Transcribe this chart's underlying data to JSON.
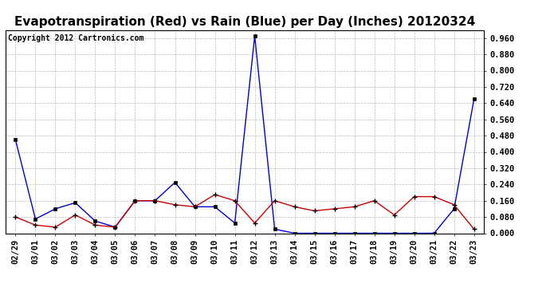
{
  "title": "Evapotranspiration (Red) vs Rain (Blue) per Day (Inches) 20120324",
  "copyright": "Copyright 2012 Cartronics.com",
  "x_labels": [
    "02/29",
    "03/01",
    "03/02",
    "03/03",
    "03/04",
    "03/05",
    "03/06",
    "03/07",
    "03/08",
    "03/09",
    "03/10",
    "03/11",
    "03/12",
    "03/13",
    "03/14",
    "03/15",
    "03/16",
    "03/17",
    "03/18",
    "03/19",
    "03/20",
    "03/21",
    "03/22",
    "03/23"
  ],
  "blue_rain": [
    0.46,
    0.07,
    0.12,
    0.15,
    0.06,
    0.03,
    0.16,
    0.16,
    0.25,
    0.13,
    0.13,
    0.05,
    0.97,
    0.02,
    0.0,
    0.0,
    0.0,
    0.0,
    0.0,
    0.0,
    0.0,
    0.0,
    0.12,
    0.66
  ],
  "red_et": [
    0.08,
    0.04,
    0.03,
    0.09,
    0.04,
    0.03,
    0.16,
    0.16,
    0.14,
    0.13,
    0.19,
    0.16,
    0.05,
    0.16,
    0.13,
    0.11,
    0.12,
    0.13,
    0.16,
    0.09,
    0.18,
    0.18,
    0.14,
    0.02
  ],
  "ylim": [
    0.0,
    1.0
  ],
  "yticks": [
    0.0,
    0.08,
    0.16,
    0.24,
    0.32,
    0.4,
    0.48,
    0.56,
    0.64,
    0.72,
    0.8,
    0.88,
    0.96
  ],
  "bg_color": "#ffffff",
  "plot_bg_color": "#ffffff",
  "grid_color": "#bbbbbb",
  "blue_color": "#0000cc",
  "red_color": "#cc0000",
  "title_fontsize": 11,
  "copyright_fontsize": 7,
  "tick_fontsize": 7.5
}
